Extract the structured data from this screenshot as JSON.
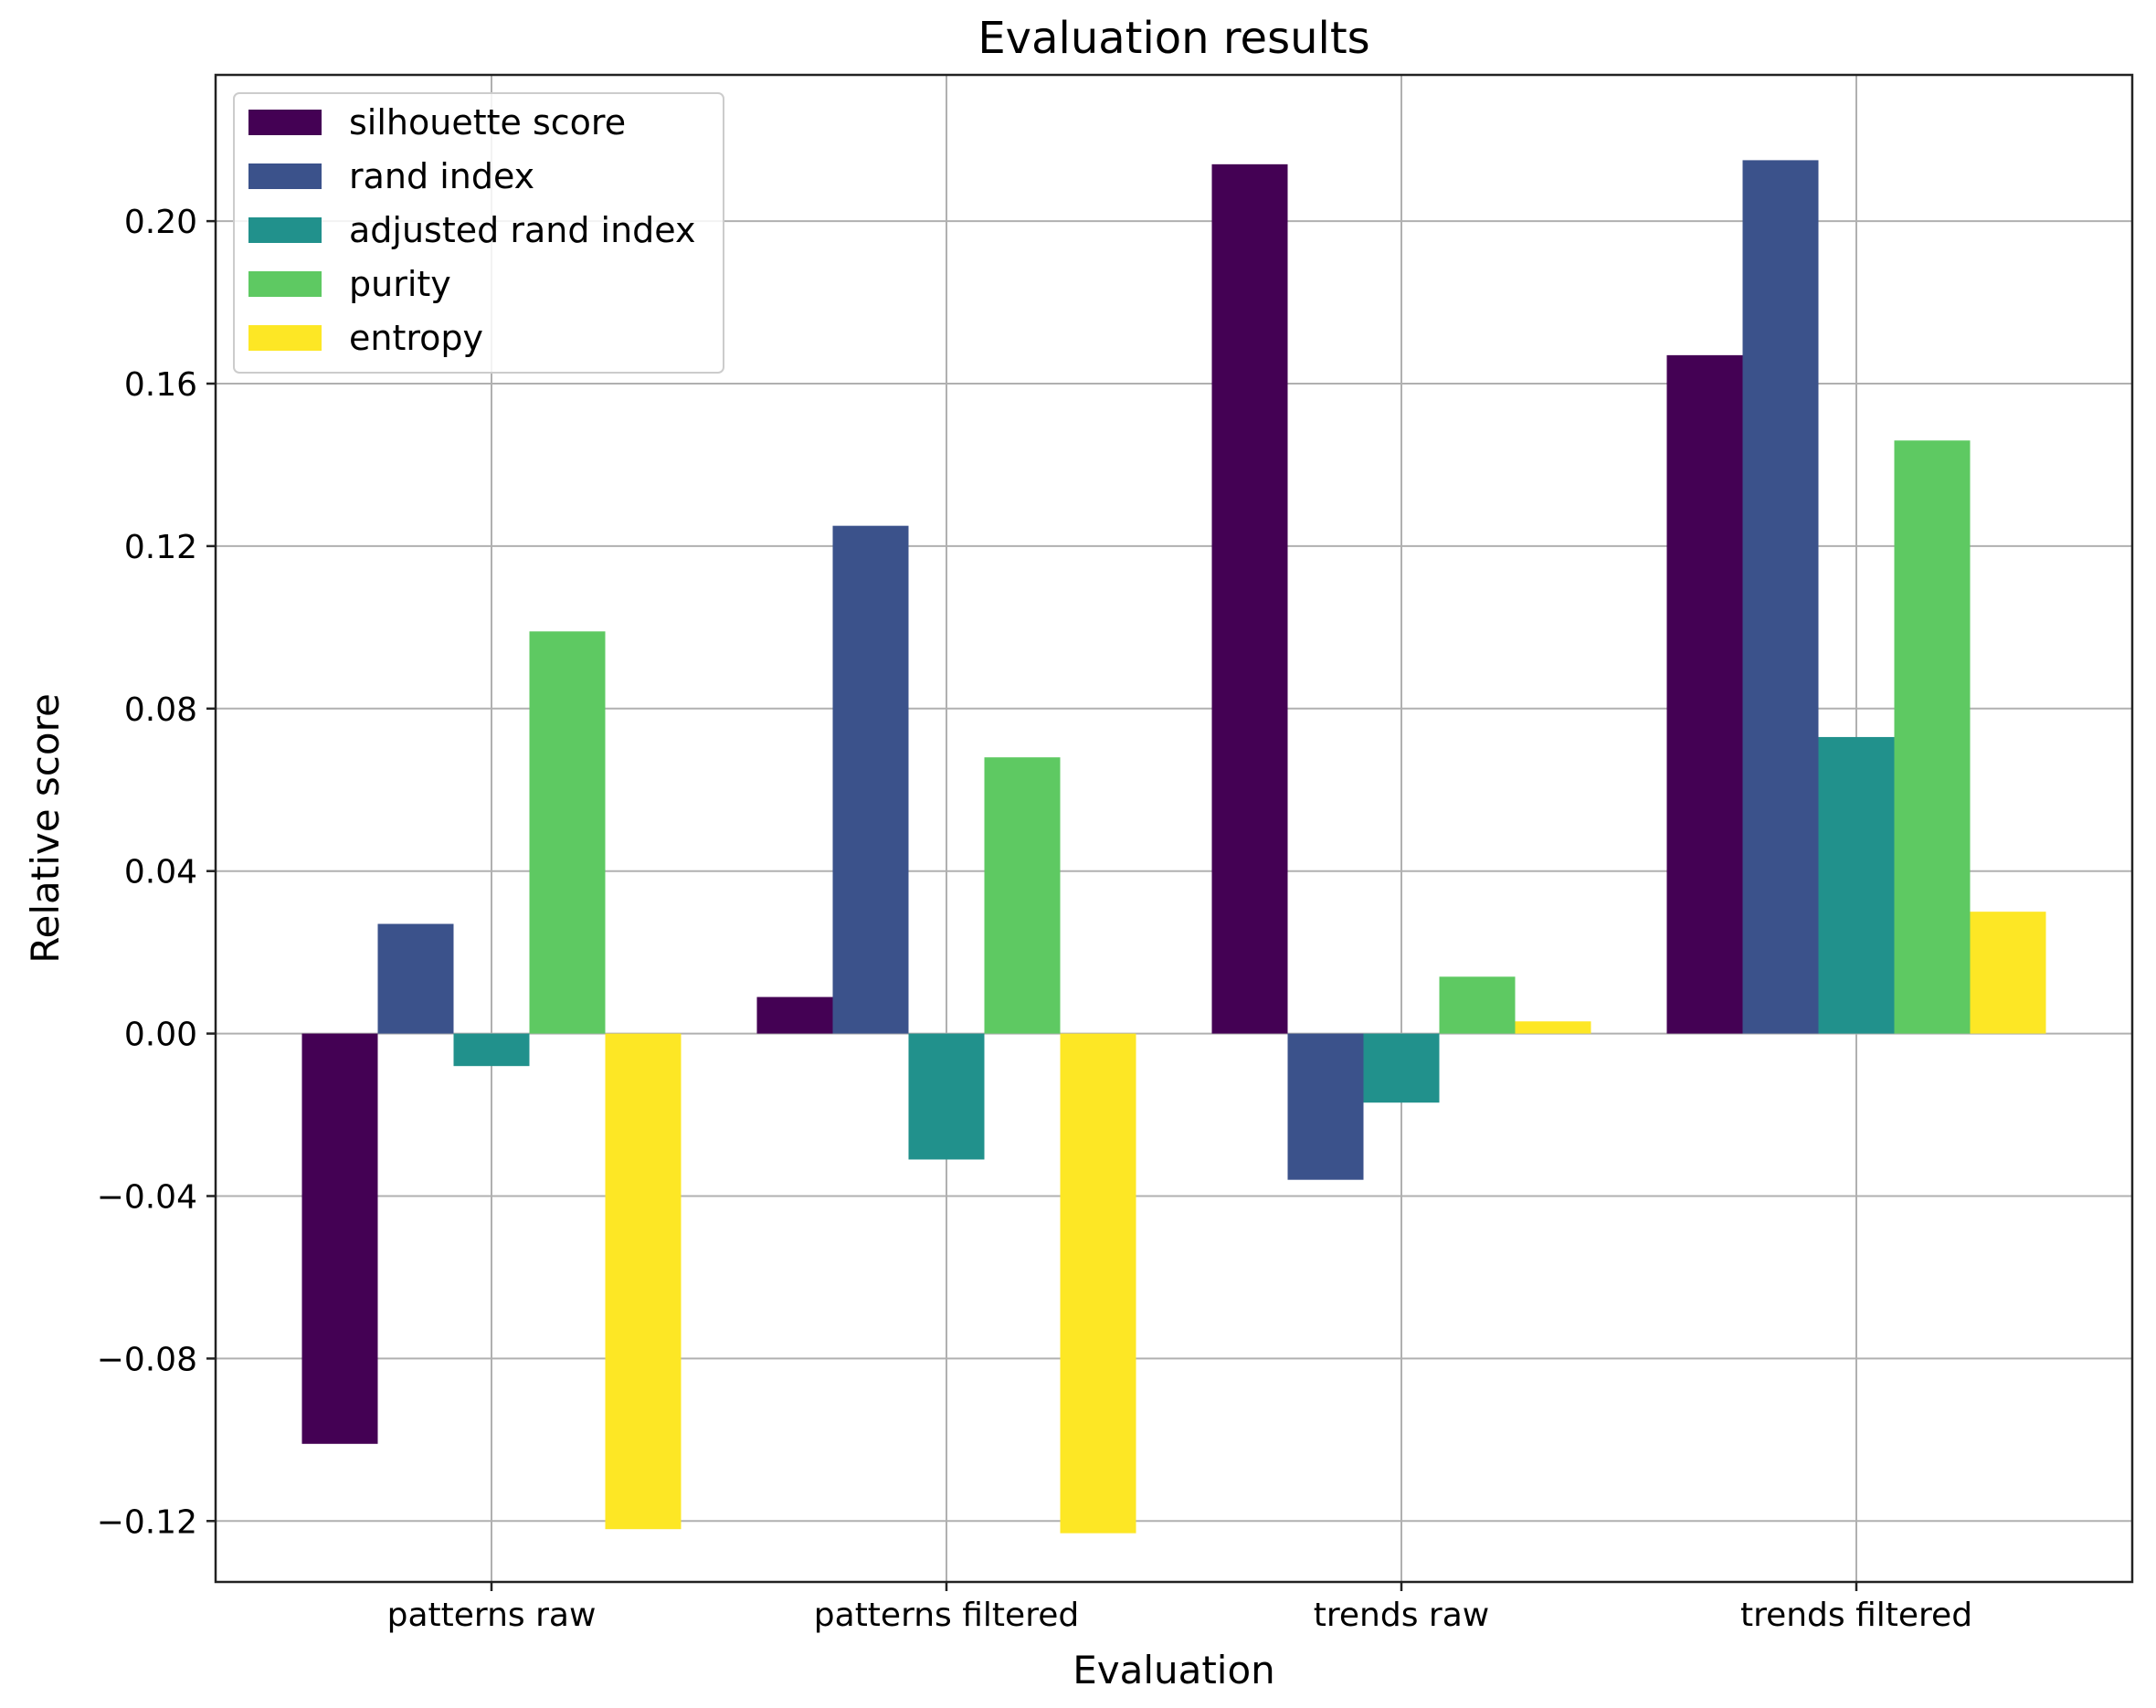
{
  "chart_data": {
    "type": "bar",
    "title": "Evaluation results",
    "xlabel": "Evaluation",
    "ylabel": "Relative score",
    "categories": [
      "patterns raw",
      "patterns filtered",
      "trends raw",
      "trends filtered"
    ],
    "series": [
      {
        "name": "silhouette score",
        "color": "#440154",
        "values": [
          -0.101,
          0.009,
          0.214,
          0.167
        ]
      },
      {
        "name": "rand index",
        "color": "#3b528b",
        "values": [
          0.027,
          0.125,
          -0.036,
          0.215
        ]
      },
      {
        "name": "adjusted rand index",
        "color": "#21918c",
        "values": [
          -0.008,
          -0.031,
          -0.017,
          0.073
        ]
      },
      {
        "name": "purity",
        "color": "#5ec962",
        "values": [
          0.099,
          0.068,
          0.014,
          0.146
        ]
      },
      {
        "name": "entropy",
        "color": "#fde725",
        "values": [
          -0.122,
          -0.123,
          0.003,
          0.03
        ]
      }
    ],
    "yticks": [
      -0.12,
      -0.08,
      -0.04,
      0.0,
      0.04,
      0.08,
      0.12,
      0.16,
      0.2
    ],
    "ytick_labels": [
      "−0.12",
      "−0.08",
      "−0.04",
      "0.00",
      "0.04",
      "0.08",
      "0.12",
      "0.16",
      "0.20"
    ],
    "ylim": [
      -0.135,
      0.236
    ],
    "grid": true,
    "legend_position": "top-left"
  }
}
